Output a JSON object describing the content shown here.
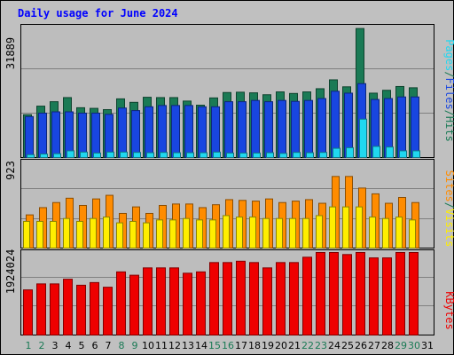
{
  "chart_data": [
    {
      "type": "bar",
      "title": "Daily usage for June 2024",
      "categories": [
        "1",
        "2",
        "3",
        "4",
        "5",
        "6",
        "7",
        "8",
        "9",
        "10",
        "11",
        "12",
        "13",
        "14",
        "15",
        "16",
        "17",
        "18",
        "19",
        "20",
        "21",
        "22",
        "23",
        "24",
        "25",
        "26",
        "27",
        "28",
        "29",
        "30",
        "31"
      ],
      "weekend_days": [
        "1",
        "2",
        "8",
        "9",
        "15",
        "16",
        "22",
        "23",
        "29",
        "30"
      ],
      "ylabel_max": "31889",
      "ymax": 31889,
      "series": [
        {
          "name": "Hits",
          "color": "#1a7a55",
          "values": [
            13800,
            16500,
            17900,
            19200,
            16000,
            15800,
            15400,
            18800,
            17700,
            19300,
            19200,
            19200,
            18100,
            16800,
            19100,
            20800,
            20900,
            20700,
            20100,
            21000,
            20500,
            21000,
            22000,
            24800,
            22600,
            41000,
            20600,
            21500,
            22700,
            22300,
            0
          ]
        },
        {
          "name": "Files",
          "color": "#1846e0",
          "values": [
            13200,
            14300,
            14700,
            14700,
            14300,
            14300,
            13900,
            15900,
            15100,
            16300,
            16700,
            16700,
            16700,
            16300,
            16300,
            17900,
            17900,
            18300,
            17900,
            18300,
            18000,
            18300,
            18900,
            21200,
            20600,
            23600,
            18600,
            18900,
            19400,
            19400,
            0
          ]
        },
        {
          "name": "Pages",
          "color": "#20d8f0",
          "values": [
            1200,
            1400,
            1500,
            2400,
            2000,
            1700,
            2000,
            2000,
            1900,
            1800,
            1900,
            1800,
            1800,
            1800,
            2000,
            1700,
            1700,
            1700,
            1800,
            1600,
            1900,
            1800,
            1900,
            3200,
            3400,
            12400,
            3800,
            3600,
            2400,
            2400,
            0
          ]
        }
      ],
      "legend_text": [
        "Pages",
        "/",
        "Files",
        "/",
        "Hits"
      ],
      "legend_colors": [
        "#20d8f0",
        "#1a7a55",
        "#1846e0",
        "#1a7a55",
        "#1a7a55"
      ]
    },
    {
      "type": "bar",
      "categories": [
        "1",
        "2",
        "3",
        "4",
        "5",
        "6",
        "7",
        "8",
        "9",
        "10",
        "11",
        "12",
        "13",
        "14",
        "15",
        "16",
        "17",
        "18",
        "19",
        "20",
        "21",
        "22",
        "23",
        "24",
        "25",
        "26",
        "27",
        "28",
        "29",
        "30",
        "31"
      ],
      "ylabel_max": "923",
      "ymax": 923,
      "series": [
        {
          "name": "Visits",
          "color": "#ff8c00",
          "values": [
            470,
            570,
            640,
            700,
            600,
            690,
            740,
            490,
            580,
            490,
            600,
            620,
            620,
            570,
            610,
            680,
            670,
            660,
            690,
            640,
            660,
            680,
            630,
            1000,
            1000,
            840,
            760,
            630,
            710,
            640,
            0
          ]
        },
        {
          "name": "Sites",
          "color": "#ffee00",
          "values": [
            380,
            380,
            380,
            420,
            380,
            420,
            440,
            360,
            380,
            360,
            400,
            400,
            420,
            400,
            400,
            460,
            440,
            440,
            420,
            420,
            420,
            420,
            460,
            580,
            580,
            580,
            440,
            420,
            440,
            400,
            0
          ]
        }
      ],
      "legend_text": [
        "Sites",
        "/",
        "Visits"
      ],
      "legend_colors": [
        "#ff8c00",
        "#1a7a55",
        "#ffee00"
      ]
    },
    {
      "type": "bar",
      "categories": [
        "1",
        "2",
        "3",
        "4",
        "5",
        "6",
        "7",
        "8",
        "9",
        "10",
        "11",
        "12",
        "13",
        "14",
        "15",
        "16",
        "17",
        "18",
        "19",
        "20",
        "21",
        "22",
        "23",
        "24",
        "25",
        "26",
        "27",
        "28",
        "29",
        "30",
        "31"
      ],
      "ylabel_max": "1924024",
      "ymax": 1924024,
      "series": [
        {
          "name": "KBytes",
          "color": "#ee0000",
          "values": [
            1380000,
            1560000,
            1560000,
            1700000,
            1520000,
            1600000,
            1460000,
            1920000,
            1820000,
            2040000,
            2040000,
            2040000,
            1880000,
            1920000,
            2200000,
            2200000,
            2240000,
            2200000,
            2040000,
            2200000,
            2200000,
            2360000,
            2560000,
            2720000,
            2440000,
            2840000,
            2340000,
            2340000,
            2620000,
            2560000,
            0
          ]
        }
      ],
      "legend_text": [
        "KBytes"
      ],
      "legend_colors": [
        "#ee0000"
      ]
    }
  ]
}
